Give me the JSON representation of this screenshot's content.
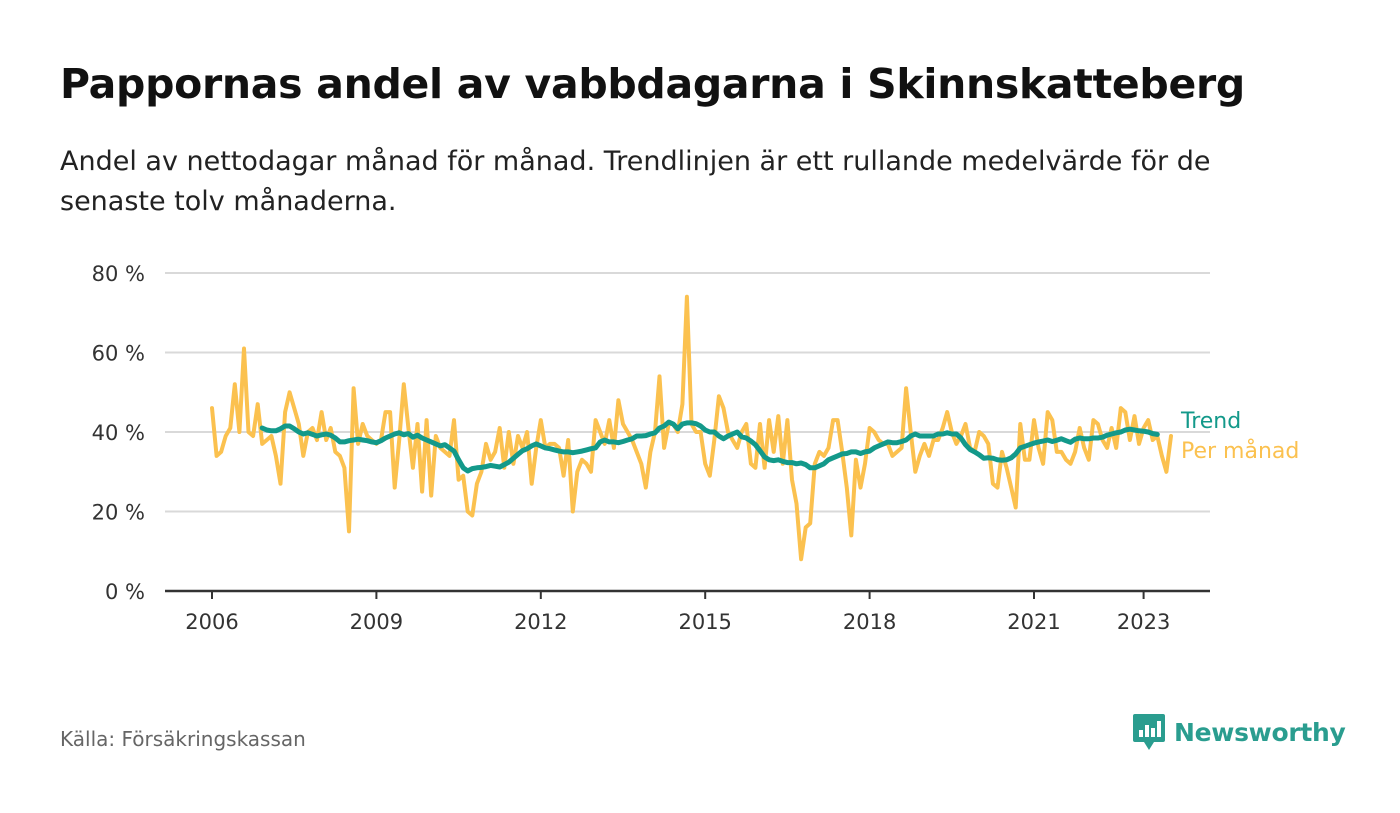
{
  "header": {
    "title": "Pappornas andel av vabbdagarna i Skinnskatteberg",
    "subtitle": "Andel av nettodagar månad för månad. Trendlinjen är ett rullande medelvärde för de senaste tolv månaderna."
  },
  "footer": {
    "source": "Källa: Försäkringskassan",
    "brand": "Newsworthy",
    "brand_icon": "bar-chart-speech-bubble-icon"
  },
  "colors": {
    "trend": "#13998a",
    "monthly": "#fbc14f",
    "grid": "#d9d9d9",
    "axis": "#333333",
    "brand": "#2a9d8f"
  },
  "chart_data": {
    "type": "line",
    "ylim": [
      0,
      80
    ],
    "y_ticks": [
      0,
      20,
      40,
      60,
      80
    ],
    "y_tick_labels": [
      "0 %",
      "20 %",
      "40 %",
      "60 %",
      "80 %"
    ],
    "x_ticks": [
      2006,
      2009,
      2012,
      2015,
      2018,
      2021,
      2023
    ],
    "x_tick_labels": [
      "2006",
      "2009",
      "2012",
      "2015",
      "2018",
      "2021",
      "2023"
    ],
    "grid": true,
    "legend_position": "right",
    "series": [
      {
        "name": "Per månad",
        "start": "2006-01",
        "values": [
          46,
          34,
          35,
          39,
          41,
          52,
          40,
          61,
          40,
          39,
          47,
          37,
          38,
          39,
          34,
          27,
          45,
          50,
          46,
          42,
          34,
          40,
          41,
          38,
          45,
          38,
          41,
          35,
          34,
          31,
          15,
          51,
          37,
          42,
          39,
          38,
          37,
          38,
          45,
          45,
          26,
          38,
          52,
          41,
          31,
          42,
          25,
          43,
          24,
          39,
          36,
          35,
          34,
          43,
          28,
          29,
          20,
          19,
          27,
          30,
          37,
          33,
          35,
          41,
          31,
          40,
          32,
          39,
          36,
          40,
          27,
          36,
          43,
          36,
          37,
          37,
          36,
          29,
          38,
          20,
          30,
          33,
          32,
          30,
          43,
          40,
          37,
          43,
          36,
          48,
          42,
          40,
          38,
          35,
          32,
          26,
          35,
          40,
          54,
          36,
          42,
          42,
          40,
          47,
          74,
          42,
          40,
          40,
          32,
          29,
          38,
          49,
          46,
          40,
          38,
          36,
          40,
          42,
          32,
          31,
          42,
          31,
          43,
          35,
          44,
          32,
          43,
          28,
          22,
          8,
          16,
          17,
          32,
          35,
          34,
          36,
          43,
          43,
          35,
          26,
          14,
          33,
          26,
          32,
          41,
          40,
          38,
          37,
          37,
          34,
          35,
          36,
          51,
          40,
          30,
          34,
          37,
          34,
          38,
          38,
          41,
          45,
          40,
          37,
          39,
          42,
          36,
          35,
          40,
          39,
          37,
          27,
          26,
          35,
          31,
          26,
          21,
          42,
          33,
          33,
          43,
          36,
          32,
          45,
          43,
          35,
          35,
          33,
          32,
          35,
          41,
          36,
          33,
          43,
          42,
          38,
          36,
          41,
          36,
          46,
          45,
          38,
          44,
          37,
          41,
          43,
          38,
          39,
          34,
          30,
          39
        ]
      },
      {
        "name": "Trend",
        "start": "2006-12",
        "values": [
          41,
          40.5,
          40.3,
          40.3,
          40.8,
          41.5,
          41.5,
          40.8,
          40,
          39.5,
          39.8,
          39.4,
          39,
          39.3,
          39.5,
          39.2,
          38.5,
          37.5,
          37.5,
          37.8,
          38,
          38.2,
          38,
          37.8,
          37.5,
          37.3,
          37.8,
          38.5,
          39,
          39.5,
          39.8,
          39.3,
          39.6,
          38.7,
          39.2,
          38.5,
          38,
          37.5,
          37,
          36.5,
          36.8,
          36,
          35.2,
          33,
          31,
          30.2,
          30.8,
          31,
          31.1,
          31.3,
          31.6,
          31.4,
          31.2,
          31.8,
          32.4,
          33.4,
          34.4,
          35.3,
          35.8,
          36.5,
          37,
          36.5,
          36,
          35.8,
          35.5,
          35.2,
          35,
          35,
          34.8,
          35,
          35.2,
          35.5,
          35.8,
          36,
          37.5,
          38,
          37.5,
          37.5,
          37.3,
          37.6,
          38,
          38.3,
          39,
          39,
          39.1,
          39.5,
          39.8,
          41,
          41.5,
          42.5,
          42,
          40.8,
          42,
          42.3,
          42.3,
          42.1,
          41.5,
          40.5,
          40,
          40,
          39,
          38.3,
          39,
          39.5,
          40,
          38.8,
          38.5,
          37.7,
          36.8,
          35.3,
          33.7,
          33,
          32.8,
          33,
          32.6,
          32.3,
          32.3,
          32,
          32.2,
          31.8,
          31,
          31,
          31.5,
          32,
          33,
          33.5,
          34,
          34.5,
          34.6,
          35,
          35,
          34.6,
          35,
          35.2,
          36,
          36.5,
          37,
          37.5,
          37.3,
          37.3,
          37.6,
          38,
          39,
          39.5,
          39,
          39,
          39,
          39,
          39.5,
          39.5,
          39.8,
          39.5,
          39.5,
          38.5,
          36.8,
          35.6,
          35,
          34.3,
          33.4,
          33.5,
          33.4,
          33,
          32.9,
          33,
          33.5,
          34.5,
          36,
          36.4,
          36.8,
          37.2,
          37.5,
          37.7,
          38,
          37.6,
          37.9,
          38.3,
          37.8,
          37.4,
          38.2,
          38.5,
          38.3,
          38.3,
          38.5,
          38.5,
          38.7,
          39.2,
          39.5,
          39.8,
          40,
          40.5,
          40.7,
          40.5,
          40.3,
          40.2,
          40,
          39.6,
          39.4
        ]
      }
    ]
  }
}
